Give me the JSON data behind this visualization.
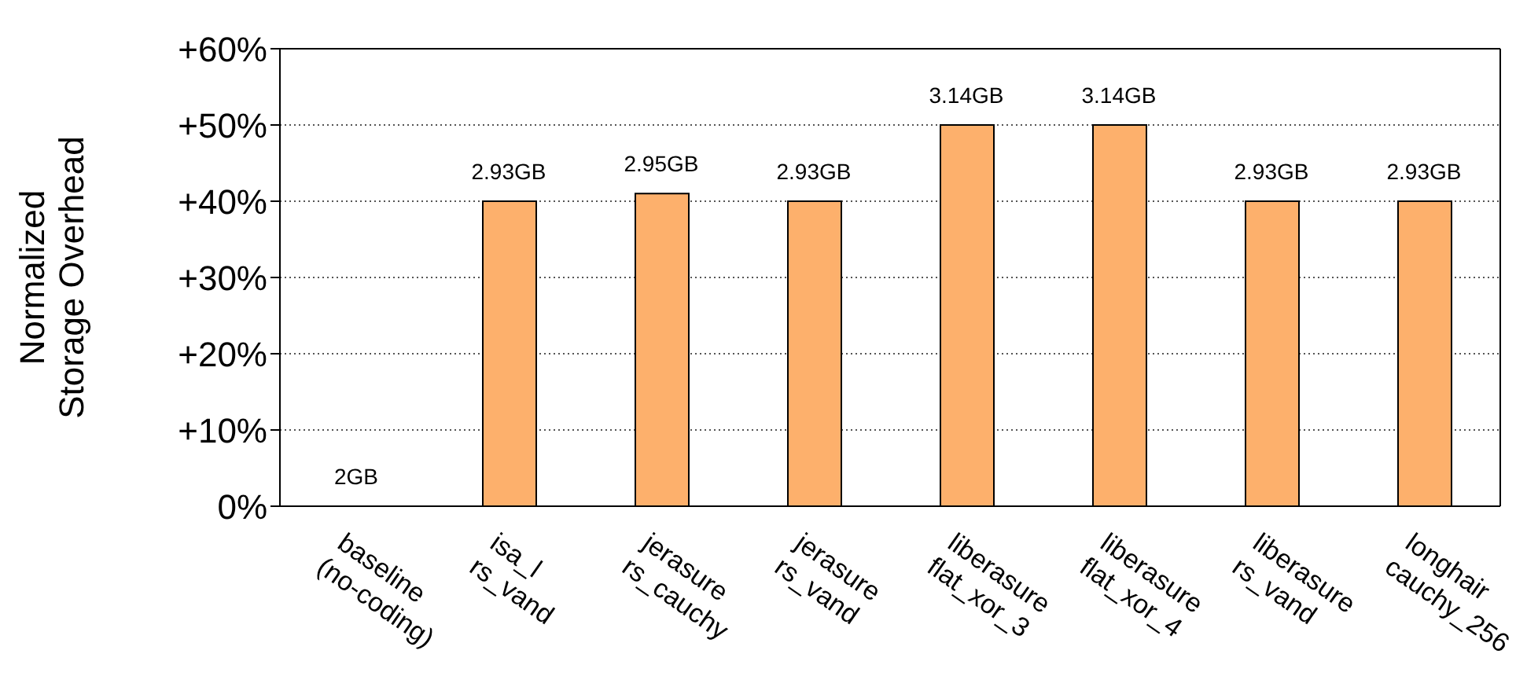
{
  "chart_data": {
    "type": "bar",
    "ylabel": "Normalized\nStorage Overhead",
    "categories": [
      "baseline\n(no-coding)",
      "isa_l\nrs_vand",
      "jerasure\nrs_cauchy",
      "jerasure\nrs_vand",
      "liberasure\nflat_xor_3",
      "liberasure\nflat_xor_4",
      "liberasure\nrs_vand",
      "longhair\ncauchy_256"
    ],
    "values": [
      0,
      40,
      41,
      40,
      50,
      50,
      40,
      40
    ],
    "annotations": [
      {
        "text": "2GB",
        "x": "baseline\n(no-coding)",
        "y": 0
      },
      {
        "text": "2.93GB",
        "x": "isa_l\nrs_vand",
        "y": 40
      },
      {
        "text": "2.95GB",
        "x": "jerasure\nrs_cauchy",
        "y": 41
      },
      {
        "text": "2.93GB",
        "x": "jerasure\nrs_vand",
        "y": 40
      },
      {
        "text": "3.14GB",
        "x": "liberasure\nflat_xor_3",
        "y": 50
      },
      {
        "text": "3.14GB",
        "x": "liberasure\nflat_xor_4",
        "y": 50
      },
      {
        "text": "2.93GB",
        "x": "liberasure\nrs_vand",
        "y": 40
      },
      {
        "text": "2.93GB",
        "x": "longhair\ncauchy_256",
        "y": 40
      }
    ],
    "color": "#fdb06c",
    "ylim": [
      0,
      60
    ],
    "yticks": [
      {
        "value": 0,
        "label": "0%"
      },
      {
        "value": 10,
        "label": "+10%"
      },
      {
        "value": 20,
        "label": "+20%"
      },
      {
        "value": 30,
        "label": "+30%"
      },
      {
        "value": 40,
        "label": "+40%"
      },
      {
        "value": 50,
        "label": "+50%"
      },
      {
        "value": 60,
        "label": "+60%"
      }
    ],
    "grid": "y"
  }
}
